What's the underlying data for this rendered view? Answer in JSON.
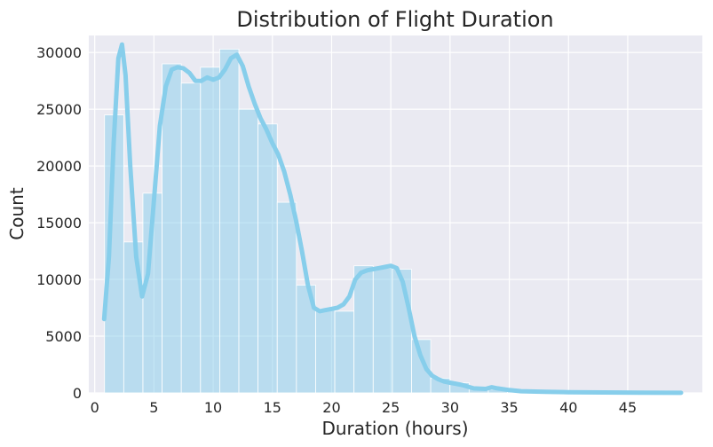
{
  "chart_data": {
    "type": "bar",
    "title": "Distribution of Flight Duration",
    "xlabel": "Duration (hours)",
    "ylabel": "Count",
    "xlim": [
      -0.5,
      51.3
    ],
    "ylim": [
      0,
      31500
    ],
    "x_ticks": [
      0,
      5,
      10,
      15,
      20,
      25,
      30,
      35,
      40,
      45
    ],
    "x_tick_labels": [
      "0",
      "5",
      "10",
      "15",
      "20",
      "25",
      "30",
      "35",
      "40",
      "45"
    ],
    "y_ticks": [
      0,
      5000,
      10000,
      15000,
      20000,
      25000,
      30000
    ],
    "y_tick_labels": [
      "0",
      "5000",
      "10000",
      "15000",
      "20000",
      "25000",
      "30000"
    ],
    "grid": true,
    "colors": {
      "bar": "#87CEEB",
      "kde": "#87CEEB",
      "background": "#EAEAF2",
      "grid": "#FFFFFF"
    },
    "bins": {
      "edges": [
        0.83,
        2.45,
        4.07,
        5.69,
        7.31,
        8.93,
        10.55,
        12.17,
        13.79,
        15.41,
        17.03,
        18.65,
        20.27,
        21.89,
        23.51,
        25.13,
        26.75,
        28.37,
        29.99,
        31.61,
        33.23,
        34.85,
        36.47,
        38.09,
        39.71,
        41.33,
        42.95,
        44.57,
        46.19,
        47.81,
        49.43
      ],
      "counts": [
        24500,
        13300,
        17600,
        29000,
        27300,
        28700,
        30300,
        25000,
        23700,
        16800,
        9500,
        7400,
        7200,
        11200,
        11000,
        10900,
        4700,
        1300,
        900,
        500,
        300,
        200,
        150,
        120,
        100,
        80,
        60,
        50,
        40,
        30
      ]
    },
    "kde": {
      "x": [
        0.8,
        1.2,
        1.6,
        2.0,
        2.3,
        2.6,
        3.0,
        3.5,
        4.0,
        4.5,
        5.0,
        5.5,
        6.0,
        6.5,
        7.0,
        7.5,
        8.0,
        8.5,
        9.0,
        9.5,
        10.0,
        10.5,
        11.0,
        11.5,
        12.0,
        12.5,
        13.0,
        13.5,
        14.0,
        14.5,
        15.0,
        15.5,
        16.0,
        16.5,
        17.0,
        17.5,
        18.0,
        18.5,
        19.0,
        19.5,
        20.0,
        20.5,
        21.0,
        21.5,
        22.0,
        22.5,
        23.0,
        23.5,
        24.0,
        24.5,
        25.0,
        25.5,
        26.0,
        26.5,
        27.0,
        27.5,
        28.0,
        28.5,
        29.0,
        29.5,
        30.0,
        31.0,
        32.0,
        33.0,
        33.5,
        34.0,
        35.0,
        36.0,
        38.0,
        40.0,
        43.0,
        46.0,
        49.5
      ],
      "y": [
        6500,
        12000,
        22000,
        29500,
        30700,
        28000,
        20000,
        12000,
        8500,
        10500,
        17000,
        23500,
        27000,
        28500,
        28700,
        28600,
        28200,
        27500,
        27500,
        27800,
        27600,
        27800,
        28500,
        29500,
        29800,
        28800,
        27000,
        25500,
        24200,
        23200,
        22000,
        21000,
        19500,
        17500,
        15200,
        12500,
        9500,
        7500,
        7200,
        7300,
        7400,
        7500,
        7800,
        8500,
        10000,
        10600,
        10800,
        10900,
        11000,
        11100,
        11200,
        11000,
        9800,
        7500,
        5000,
        3300,
        2100,
        1500,
        1200,
        1000,
        900,
        700,
        400,
        350,
        500,
        400,
        250,
        150,
        100,
        60,
        40,
        20,
        10
      ]
    }
  }
}
